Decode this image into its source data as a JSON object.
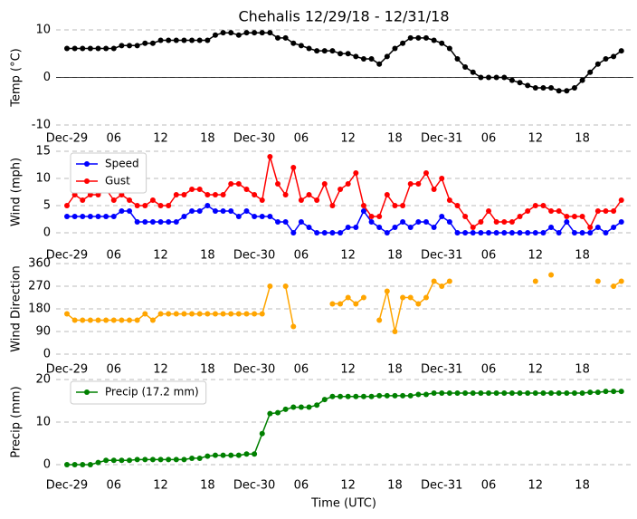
{
  "chart_data": [
    {
      "type": "line",
      "title": "Chehalis 12/29/18 - 12/31/18",
      "ylabel": "Temp (°C)",
      "categories": [
        "Dec-29",
        null,
        null,
        null,
        null,
        null,
        "06",
        null,
        null,
        null,
        null,
        null,
        "12",
        null,
        null,
        null,
        null,
        null,
        "18",
        null,
        null,
        null,
        null,
        null,
        "Dec-30",
        null,
        null,
        null,
        null,
        null,
        "06",
        null,
        null,
        null,
        null,
        null,
        "12",
        null,
        null,
        null,
        null,
        null,
        "18",
        null,
        null,
        null,
        null,
        null,
        "Dec-31",
        null,
        null,
        null,
        null,
        null,
        "06",
        null,
        null,
        null,
        null,
        null,
        "12",
        null,
        null,
        null,
        null,
        null,
        "18",
        null,
        null,
        null,
        null,
        null
      ],
      "series": [
        {
          "color": "#000000",
          "values": [
            6.1,
            6.1,
            6.1,
            6.1,
            6.1,
            6.1,
            6.1,
            6.7,
            6.7,
            6.7,
            7.2,
            7.2,
            7.8,
            7.8,
            7.8,
            7.8,
            7.8,
            7.8,
            7.8,
            8.9,
            9.4,
            9.4,
            8.9,
            9.4,
            9.4,
            9.4,
            9.4,
            8.3,
            8.3,
            7.2,
            6.7,
            6.1,
            5.6,
            5.6,
            5.6,
            5.0,
            5.0,
            4.4,
            3.9,
            3.9,
            2.8,
            4.4,
            6.1,
            7.2,
            8.3,
            8.3,
            8.3,
            7.8,
            7.2,
            6.1,
            3.9,
            2.2,
            1.1,
            0,
            0,
            0,
            0,
            -0.6,
            -1.1,
            -1.7,
            -2.2,
            -2.2,
            -2.2,
            -2.8,
            -2.8,
            -2.2,
            -0.6,
            1.1,
            2.8,
            3.9,
            4.4,
            5.6
          ]
        }
      ],
      "ylim": [
        -10,
        10
      ],
      "yticks": [
        -10,
        0,
        10
      ],
      "grid": true,
      "zero_line": true
    },
    {
      "type": "line",
      "ylabel": "Wind (mph)",
      "categories": [
        "Dec-29",
        null,
        null,
        null,
        null,
        null,
        "06",
        null,
        null,
        null,
        null,
        null,
        "12",
        null,
        null,
        null,
        null,
        null,
        "18",
        null,
        null,
        null,
        null,
        null,
        "Dec-30",
        null,
        null,
        null,
        null,
        null,
        "06",
        null,
        null,
        null,
        null,
        null,
        "12",
        null,
        null,
        null,
        null,
        null,
        "18",
        null,
        null,
        null,
        null,
        null,
        "Dec-31",
        null,
        null,
        null,
        null,
        null,
        "06",
        null,
        null,
        null,
        null,
        null,
        "12",
        null,
        null,
        null,
        null,
        null,
        "18",
        null,
        null,
        null,
        null,
        null
      ],
      "series": [
        {
          "name": "Speed",
          "color": "#0000ff",
          "values": [
            3,
            3,
            3,
            3,
            3,
            3,
            3,
            4,
            4,
            2,
            2,
            2,
            2,
            2,
            2,
            3,
            4,
            4,
            5,
            4,
            4,
            4,
            3,
            4,
            3,
            3,
            3,
            2,
            2,
            0,
            2,
            1,
            0,
            0,
            0,
            0,
            1,
            1,
            4,
            2,
            1,
            0,
            1,
            2,
            1,
            2,
            2,
            1,
            3,
            2,
            0,
            0,
            0,
            0,
            0,
            0,
            0,
            0,
            0,
            0,
            0,
            0,
            1,
            0,
            2,
            0,
            0,
            0,
            1,
            0,
            1,
            2
          ]
        },
        {
          "name": "Gust",
          "color": "#ff0000",
          "values": [
            5,
            7,
            6,
            7,
            7,
            8,
            6,
            7,
            6,
            5,
            5,
            6,
            5,
            5,
            7,
            7,
            8,
            8,
            7,
            7,
            7,
            9,
            9,
            8,
            7,
            6,
            14,
            9,
            7,
            12,
            6,
            7,
            6,
            9,
            5,
            8,
            9,
            11,
            5,
            3,
            3,
            7,
            5,
            5,
            9,
            9,
            11,
            8,
            10,
            6,
            5,
            3,
            1,
            2,
            4,
            2,
            2,
            2,
            3,
            4,
            5,
            5,
            4,
            4,
            3,
            3,
            3,
            1,
            4,
            4,
            4,
            6
          ]
        }
      ],
      "ylim": [
        0,
        15
      ],
      "yticks": [
        0,
        5,
        10,
        15
      ],
      "grid": true,
      "legend": "upper left"
    },
    {
      "type": "line",
      "ylabel": "Wind Direction",
      "categories": [
        "Dec-29",
        null,
        null,
        null,
        null,
        null,
        "06",
        null,
        null,
        null,
        null,
        null,
        "12",
        null,
        null,
        null,
        null,
        null,
        "18",
        null,
        null,
        null,
        null,
        null,
        "Dec-30",
        null,
        null,
        null,
        null,
        null,
        "06",
        null,
        null,
        null,
        null,
        null,
        "12",
        null,
        null,
        null,
        null,
        null,
        "18",
        null,
        null,
        null,
        null,
        null,
        "Dec-31",
        null,
        null,
        null,
        null,
        null,
        "06",
        null,
        null,
        null,
        null,
        null,
        "12",
        null,
        null,
        null,
        null,
        null,
        "18",
        null,
        null,
        null,
        null,
        null
      ],
      "series": [
        {
          "color": "#ffa500",
          "values": [
            160,
            135,
            135,
            135,
            135,
            135,
            135,
            135,
            135,
            135,
            160,
            135,
            160,
            160,
            160,
            160,
            160,
            160,
            160,
            160,
            160,
            160,
            160,
            160,
            160,
            160,
            270,
            null,
            270,
            110,
            null,
            null,
            null,
            null,
            200,
            200,
            225,
            200,
            225,
            null,
            135,
            250,
            90,
            225,
            225,
            200,
            225,
            290,
            270,
            290,
            null,
            null,
            null,
            null,
            null,
            null,
            null,
            null,
            null,
            null,
            290,
            null,
            315,
            null,
            null,
            null,
            null,
            null,
            290,
            null,
            270,
            290
          ]
        }
      ],
      "ylim": [
        0,
        360
      ],
      "yticks": [
        0,
        90,
        180,
        270,
        360
      ],
      "grid": true
    },
    {
      "type": "line",
      "ylabel": "Precip (mm)",
      "xlabel": "Time (UTC)",
      "categories": [
        "Dec-29",
        null,
        null,
        null,
        null,
        null,
        "06",
        null,
        null,
        null,
        null,
        null,
        "12",
        null,
        null,
        null,
        null,
        null,
        "18",
        null,
        null,
        null,
        null,
        null,
        "Dec-30",
        null,
        null,
        null,
        null,
        null,
        "06",
        null,
        null,
        null,
        null,
        null,
        "12",
        null,
        null,
        null,
        null,
        null,
        "18",
        null,
        null,
        null,
        null,
        null,
        "Dec-31",
        null,
        null,
        null,
        null,
        null,
        "06",
        null,
        null,
        null,
        null,
        null,
        "12",
        null,
        null,
        null,
        null,
        null,
        "18",
        null,
        null,
        null,
        null,
        null
      ],
      "series": [
        {
          "name": "Precip (17.2 mm)",
          "color": "#008000",
          "values": [
            0,
            0,
            0,
            0,
            0.5,
            1,
            1,
            1,
            1,
            1.2,
            1.2,
            1.2,
            1.2,
            1.2,
            1.2,
            1.2,
            1.5,
            1.5,
            2,
            2.2,
            2.2,
            2.2,
            2.2,
            2.5,
            2.5,
            7.3,
            12,
            12.2,
            13,
            13.5,
            13.5,
            13.5,
            14,
            15.3,
            16,
            16,
            16,
            16,
            16,
            16,
            16.2,
            16.2,
            16.2,
            16.2,
            16.2,
            16.5,
            16.5,
            16.8,
            16.8,
            16.8,
            16.8,
            16.8,
            16.8,
            16.8,
            16.8,
            16.8,
            16.8,
            16.8,
            16.8,
            16.8,
            16.8,
            16.8,
            16.8,
            16.8,
            16.8,
            16.8,
            16.8,
            17,
            17,
            17.2,
            17.2,
            17.2
          ]
        }
      ],
      "ylim": [
        0,
        20
      ],
      "yticks": [
        0,
        10,
        20
      ],
      "grid": true,
      "legend": "upper left"
    }
  ]
}
